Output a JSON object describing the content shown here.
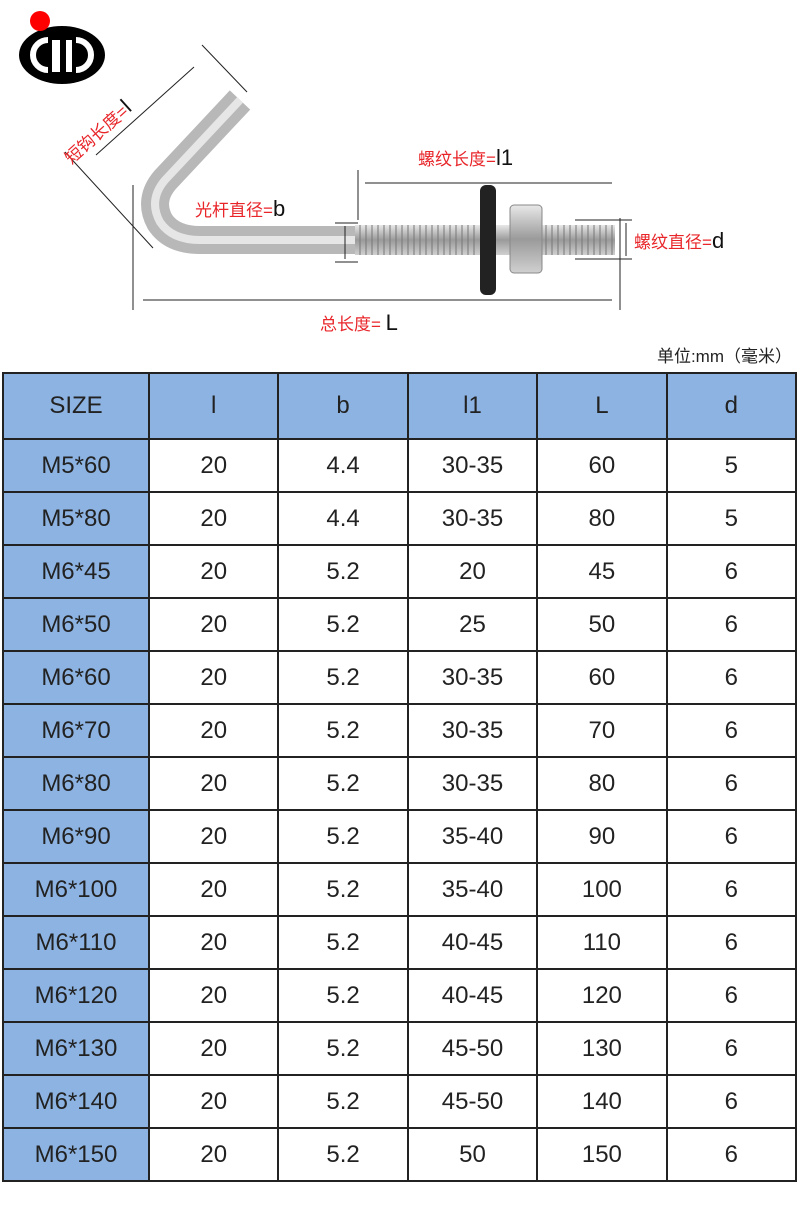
{
  "diagram": {
    "hook_length_label": "短钩长度=",
    "hook_length_symbol": "l",
    "thread_length_label": "螺纹长度=",
    "thread_length_symbol": "l1",
    "shank_diameter_label": "光杆直径=",
    "shank_diameter_symbol": "b",
    "thread_diameter_label": "螺纹直径=",
    "thread_diameter_symbol": "d",
    "total_length_label": "总长度=",
    "total_length_symbol": "L",
    "label_color": "#e8262a"
  },
  "unit": "单位:mm（毫米）",
  "table": {
    "header_color": "#8db3e2",
    "headers": [
      "SIZE",
      "l",
      "b",
      "l1",
      "L",
      "d"
    ],
    "rows": [
      [
        "M5*60",
        "20",
        "4.4",
        "30-35",
        "60",
        "5"
      ],
      [
        "M5*80",
        "20",
        "4.4",
        "30-35",
        "80",
        "5"
      ],
      [
        "M6*45",
        "20",
        "5.2",
        "20",
        "45",
        "6"
      ],
      [
        "M6*50",
        "20",
        "5.2",
        "25",
        "50",
        "6"
      ],
      [
        "M6*60",
        "20",
        "5.2",
        "30-35",
        "60",
        "6"
      ],
      [
        "M6*70",
        "20",
        "5.2",
        "30-35",
        "70",
        "6"
      ],
      [
        "M6*80",
        "20",
        "5.2",
        "30-35",
        "80",
        "6"
      ],
      [
        "M6*90",
        "20",
        "5.2",
        "35-40",
        "90",
        "6"
      ],
      [
        "M6*100",
        "20",
        "5.2",
        "35-40",
        "100",
        "6"
      ],
      [
        "M6*110",
        "20",
        "5.2",
        "40-45",
        "110",
        "6"
      ],
      [
        "M6*120",
        "20",
        "5.2",
        "40-45",
        "120",
        "6"
      ],
      [
        "M6*130",
        "20",
        "5.2",
        "45-50",
        "130",
        "6"
      ],
      [
        "M6*140",
        "20",
        "5.2",
        "45-50",
        "140",
        "6"
      ],
      [
        "M6*150",
        "20",
        "5.2",
        "50",
        "150",
        "6"
      ]
    ]
  }
}
